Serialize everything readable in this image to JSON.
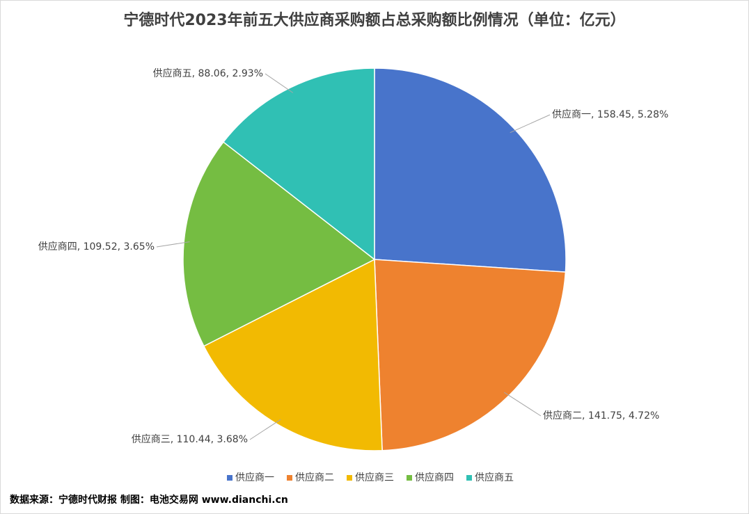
{
  "chart_data": {
    "type": "pie",
    "title": "宁德时代2023年前五大供应商采购额占总采购额比例情况（单位：亿元）",
    "categories": [
      "供应商一",
      "供应商二",
      "供应商三",
      "供应商四",
      "供应商五"
    ],
    "values": [
      158.45,
      141.75,
      110.44,
      109.52,
      88.06
    ],
    "shares": [
      {
        "value": 5.28,
        "label": "5.28%"
      },
      {
        "value": 4.72,
        "label": "4.72%"
      },
      {
        "value": 3.68,
        "label": "3.68%"
      },
      {
        "value": 3.65,
        "label": "3.65%"
      },
      {
        "value": 2.93,
        "label": "2.93%"
      }
    ],
    "colors": [
      "#4874cb",
      "#ee822f",
      "#f2ba02",
      "#75bd42",
      "#30c0b4"
    ],
    "legend": "bottom",
    "source": "数据来源：宁德时代财报  制图：电池交易网 www.dianchi.cn"
  }
}
